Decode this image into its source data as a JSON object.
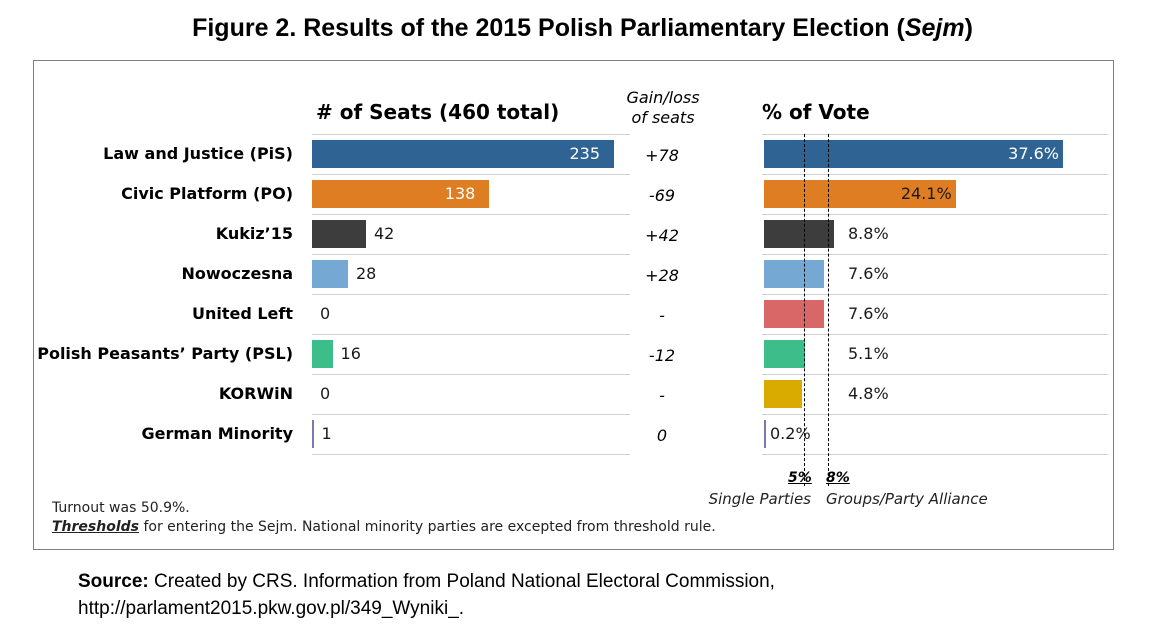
{
  "figure_title": "Figure 2. Results of the 2015 Polish Parliamentary Election (Sejm)",
  "figure_title_main": "Figure 2. Results of the 2015 Polish Parliamentary Election (",
  "figure_title_italic": "Sejm",
  "figure_title_end": ")",
  "seats_header": "# of Seats (460 total)",
  "gain_header_line1": "Gain/loss",
  "gain_header_line2": "of seats",
  "vote_header": "% of Vote",
  "chart_data": [
    {
      "type": "bar",
      "orientation": "horizontal",
      "title": "# of Seats (460 total)",
      "categories": [
        "Law and Justice (PiS)",
        "Civic Platform (PO)",
        "Kukiz’15",
        "Nowoczesna",
        "United Left",
        "Polish Peasants’ Party (PSL)",
        "KORWiN",
        "German Minority"
      ],
      "values": [
        235,
        138,
        42,
        28,
        0,
        16,
        0,
        1
      ],
      "value_labels": [
        "235",
        "138",
        "42",
        "28",
        "0",
        "16",
        "0",
        "1"
      ],
      "xlim": [
        0,
        235
      ],
      "grid": false,
      "colors": [
        "#2e6393",
        "#df7d22",
        "#3d3d3d",
        "#75a8d3",
        "#d96768",
        "#3dbd8a",
        "#d9aa00",
        "#7a79b2"
      ]
    },
    {
      "type": "bar",
      "orientation": "horizontal",
      "title": "% of Vote",
      "categories": [
        "Law and Justice (PiS)",
        "Civic Platform (PO)",
        "Kukiz’15",
        "Nowoczesna",
        "United Left",
        "Polish Peasants’ Party (PSL)",
        "KORWiN",
        "German Minority"
      ],
      "values": [
        37.6,
        24.1,
        8.8,
        7.6,
        7.6,
        5.1,
        4.8,
        0.2
      ],
      "value_labels": [
        "37.6%",
        "24.1%",
        "8.8%",
        "7.6%",
        "7.6%",
        "5.1%",
        "4.8%",
        "0.2%"
      ],
      "xlim": [
        0,
        37.6
      ],
      "thresholds": [
        {
          "value": 5,
          "label": "5%",
          "description": "Single Parties"
        },
        {
          "value": 8,
          "label": "8%",
          "description": "Groups/Party Alliance"
        }
      ],
      "grid": false,
      "colors": [
        "#2e6393",
        "#df7d22",
        "#3d3d3d",
        "#75a8d3",
        "#d96768",
        "#3dbd8a",
        "#d9aa00",
        "#7a79b2"
      ]
    }
  ],
  "gains": [
    "+78",
    "-69",
    "+42",
    "+28",
    "-",
    "-12",
    "-",
    "0"
  ],
  "notes": {
    "turnout": "Turnout was 50.9%.",
    "thresholds_word": "Thresholds",
    "thresholds_rest": " for entering the Sejm. National minority parties are excepted from threshold rule."
  },
  "source": {
    "label": "Source:",
    "line1": " Created by CRS. Information from Poland National Electoral Commission,",
    "line2": "http://parlament2015.pkw.gov.pl/349_Wyniki_."
  }
}
